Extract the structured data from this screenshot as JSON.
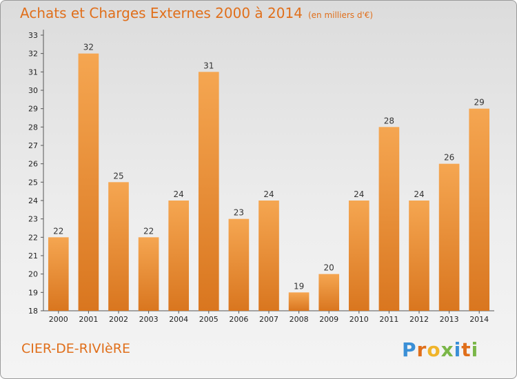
{
  "header": {
    "title": "Achats et Charges Externes 2000 à 2014",
    "subtitle": "(en milliers d'€)"
  },
  "footer": {
    "commune": "CIER-DE-RIVIèRE",
    "brand": [
      "P",
      "r",
      "o",
      "x",
      "i",
      "t",
      "i"
    ]
  },
  "colors": {
    "accent": "#e06f1b",
    "bar_top": "#f5a651",
    "bar_bottom": "#d9761f",
    "brand_letters": [
      "#3a8fd6",
      "#e06f1b",
      "#f0b42a",
      "#7ab648",
      "#3a8fd6",
      "#e06f1b",
      "#7ab648"
    ]
  },
  "chart_data": {
    "type": "bar",
    "categories": [
      "2000",
      "2001",
      "2002",
      "2003",
      "2004",
      "2005",
      "2006",
      "2007",
      "2008",
      "2009",
      "2010",
      "2011",
      "2012",
      "2013",
      "2014"
    ],
    "values": [
      22,
      32,
      25,
      22,
      24,
      31,
      23,
      24,
      19,
      20,
      24,
      28,
      24,
      26,
      29
    ],
    "title": "Achats et Charges Externes 2000 à 2014",
    "ylim": [
      18,
      33
    ],
    "yticks": [
      18,
      19,
      20,
      21,
      22,
      23,
      24,
      25,
      26,
      27,
      28,
      29,
      30,
      31,
      32,
      33
    ],
    "grid": false,
    "legend": "none"
  }
}
